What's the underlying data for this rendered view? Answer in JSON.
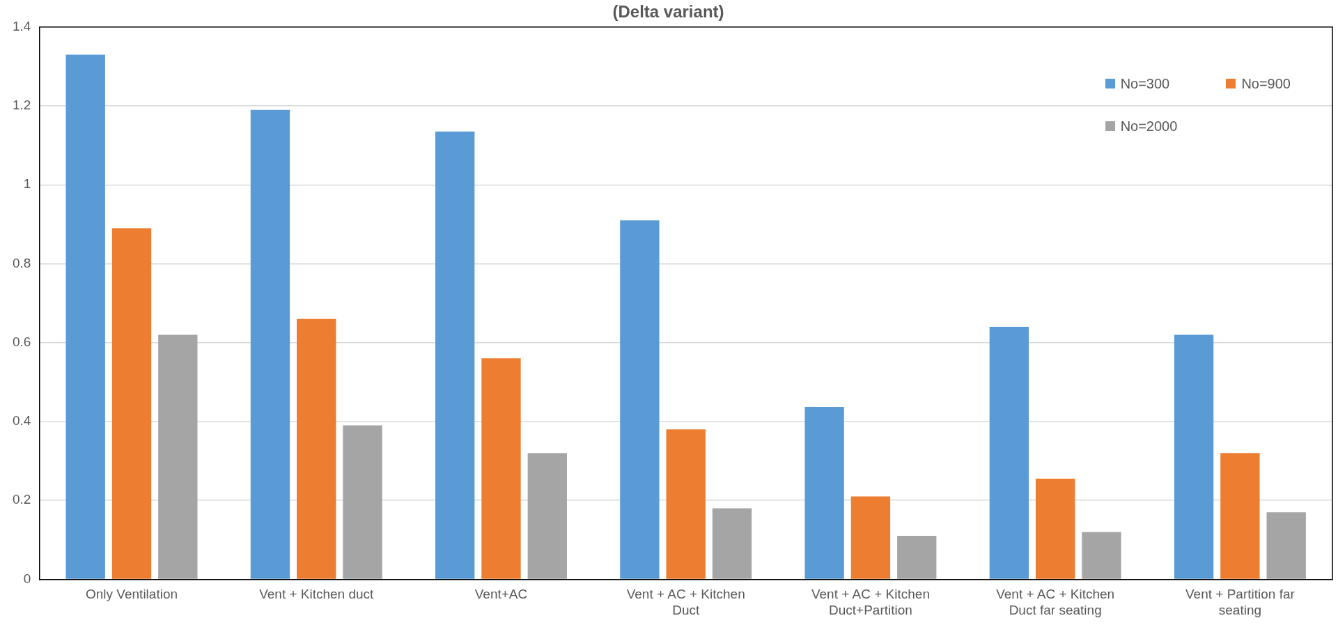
{
  "chart_data": {
    "type": "bar",
    "title": "(Delta variant)",
    "categories": [
      "Only Ventilation",
      "Vent + Kitchen duct",
      "Vent+AC",
      "Vent + AC + Kitchen Duct",
      "Vent + AC + Kitchen Duct+Partition",
      "Vent + AC + Kitchen Duct far seating",
      "Vent + Partition far seating"
    ],
    "series": [
      {
        "name": "No=300",
        "color": "#5b9bd5",
        "values": [
          1.33,
          1.19,
          1.135,
          0.91,
          0.437,
          0.64,
          0.62
        ]
      },
      {
        "name": "No=900",
        "color": "#ed7d31",
        "values": [
          0.89,
          0.66,
          0.56,
          0.38,
          0.21,
          0.255,
          0.32
        ]
      },
      {
        "name": "No=2000",
        "color": "#a5a5a5",
        "values": [
          0.62,
          0.39,
          0.32,
          0.18,
          0.11,
          0.12,
          0.17
        ]
      }
    ],
    "ylim": [
      0,
      1.4
    ],
    "yticks": [
      0,
      0.2,
      0.4,
      0.6,
      0.8,
      1,
      1.2,
      1.4
    ],
    "grid": "y",
    "legend": "top right"
  }
}
